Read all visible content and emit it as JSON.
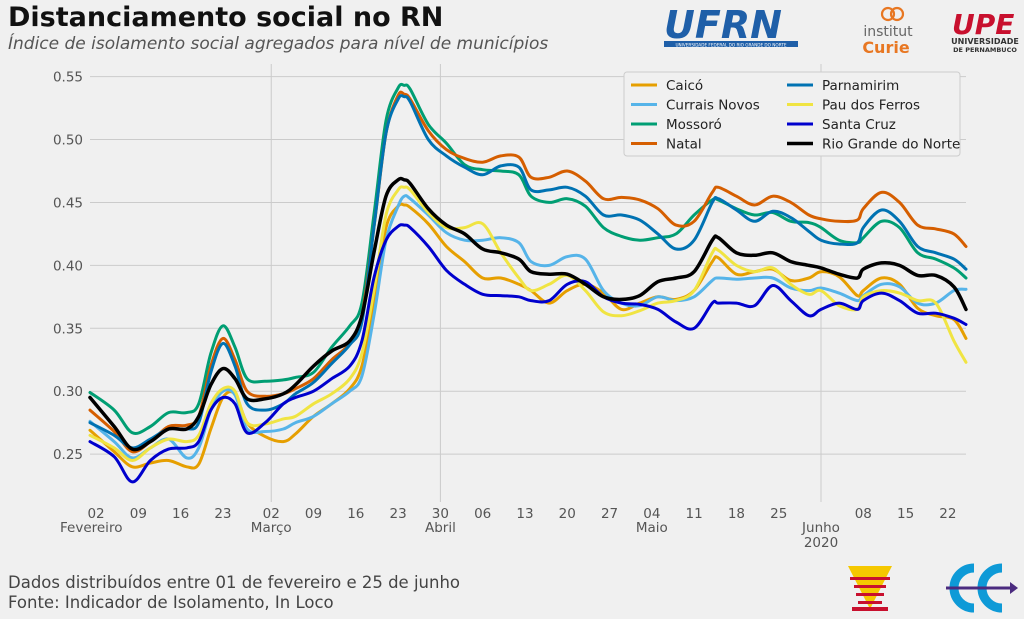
{
  "header": {
    "title": "Distanciamento social no RN",
    "subtitle": "Índice de isolamento social agregados para nível de municípios"
  },
  "footer": {
    "line1": "Dados distribuídos entre 01 de fevereiro e 25 de junho",
    "line2": "Fonte: Indicador de Isolamento, In Loco"
  },
  "logos": {
    "ufrn": "UFRN",
    "ufrn_caption": "UNIVERSIDADE FEDERAL DO RIO GRANDE DO NORTE",
    "curie_top": "institut",
    "curie_bottom": "Curie",
    "upe": "UPE",
    "upe_caption1": "UNIVERSIDADE",
    "upe_caption2": "DE PERNAMBUCO"
  },
  "colors": {
    "background": "#f0f0f0",
    "grid": "#cbcbcb",
    "ufrn_blue": "#1f5fa8",
    "curie_orange": "#e87722",
    "upe_red": "#c8102e"
  },
  "chart_data": {
    "type": "line",
    "x_start": "2020-02-01",
    "x_end": "2020-06-25",
    "xlim": [
      0,
      145
    ],
    "ylim": [
      0.212,
      0.56
    ],
    "yticks": [
      0.25,
      0.3,
      0.35,
      0.4,
      0.45,
      0.5,
      0.55
    ],
    "ytick_labels": [
      "0.25",
      "0.30",
      "0.35",
      "0.40",
      "0.45",
      "0.50",
      "0.55"
    ],
    "xticks": [
      {
        "day": 1,
        "label": "02",
        "sub": "Fevereiro"
      },
      {
        "day": 8,
        "label": "09",
        "sub": ""
      },
      {
        "day": 15,
        "label": "16",
        "sub": ""
      },
      {
        "day": 22,
        "label": "23",
        "sub": ""
      },
      {
        "day": 30,
        "label": "02",
        "sub": "Março"
      },
      {
        "day": 37,
        "label": "09",
        "sub": ""
      },
      {
        "day": 44,
        "label": "16",
        "sub": ""
      },
      {
        "day": 51,
        "label": "23",
        "sub": ""
      },
      {
        "day": 58,
        "label": "30",
        "sub": "Abril"
      },
      {
        "day": 65,
        "label": "06",
        "sub": ""
      },
      {
        "day": 72,
        "label": "13",
        "sub": ""
      },
      {
        "day": 79,
        "label": "20",
        "sub": ""
      },
      {
        "day": 86,
        "label": "27",
        "sub": ""
      },
      {
        "day": 93,
        "label": "04",
        "sub": "Maio"
      },
      {
        "day": 100,
        "label": "11",
        "sub": ""
      },
      {
        "day": 107,
        "label": "18",
        "sub": ""
      },
      {
        "day": 114,
        "label": "25",
        "sub": ""
      },
      {
        "day": 121,
        "label": "",
        "sub": "Junho"
      },
      {
        "day": 128,
        "label": "08",
        "sub": ""
      },
      {
        "day": 135,
        "label": "15",
        "sub": ""
      },
      {
        "day": 142,
        "label": "22",
        "sub": ""
      }
    ],
    "year_label": "2020",
    "year_day": 121,
    "vgrid_days": [
      30,
      58,
      121
    ],
    "legend_position": "top-right",
    "series": [
      {
        "name": "Caicó",
        "color": "#e69f00",
        "width": 3,
        "days": [
          0,
          4,
          7,
          10,
          13,
          16,
          18,
          20,
          22,
          24,
          26,
          29,
          32,
          34,
          37,
          40,
          43,
          45,
          47,
          49,
          51,
          52,
          53,
          56,
          59,
          62,
          65,
          68,
          71,
          73,
          76,
          79,
          82,
          85,
          88,
          91,
          94,
          97,
          100,
          103,
          104,
          107,
          110,
          113,
          116,
          119,
          121,
          124,
          127,
          128,
          131,
          134,
          137,
          140,
          143,
          145
        ],
        "values": [
          0.269,
          0.252,
          0.24,
          0.243,
          0.245,
          0.24,
          0.242,
          0.27,
          0.295,
          0.298,
          0.275,
          0.264,
          0.26,
          0.266,
          0.28,
          0.29,
          0.302,
          0.32,
          0.37,
          0.43,
          0.447,
          0.448,
          0.446,
          0.433,
          0.415,
          0.403,
          0.39,
          0.39,
          0.385,
          0.38,
          0.37,
          0.38,
          0.385,
          0.378,
          0.365,
          0.37,
          0.375,
          0.373,
          0.38,
          0.403,
          0.406,
          0.393,
          0.395,
          0.397,
          0.388,
          0.39,
          0.395,
          0.391,
          0.376,
          0.38,
          0.39,
          0.385,
          0.366,
          0.36,
          0.357,
          0.342
        ]
      },
      {
        "name": "Currais Novos",
        "color": "#56b4e9",
        "width": 3,
        "days": [
          0,
          4,
          7,
          10,
          13,
          16,
          18,
          20,
          22,
          24,
          26,
          29,
          32,
          34,
          37,
          40,
          43,
          45,
          47,
          49,
          51,
          52,
          53,
          56,
          59,
          62,
          65,
          68,
          71,
          73,
          76,
          79,
          82,
          85,
          88,
          91,
          94,
          97,
          100,
          103,
          104,
          107,
          110,
          113,
          116,
          119,
          121,
          124,
          127,
          128,
          131,
          134,
          137,
          140,
          143,
          145
        ],
        "values": [
          0.276,
          0.26,
          0.247,
          0.255,
          0.262,
          0.247,
          0.255,
          0.285,
          0.3,
          0.297,
          0.27,
          0.268,
          0.27,
          0.275,
          0.28,
          0.29,
          0.3,
          0.312,
          0.36,
          0.42,
          0.447,
          0.455,
          0.453,
          0.44,
          0.426,
          0.42,
          0.42,
          0.422,
          0.418,
          0.403,
          0.4,
          0.407,
          0.405,
          0.38,
          0.37,
          0.368,
          0.375,
          0.372,
          0.375,
          0.388,
          0.39,
          0.389,
          0.39,
          0.39,
          0.382,
          0.38,
          0.382,
          0.378,
          0.372,
          0.376,
          0.385,
          0.383,
          0.37,
          0.37,
          0.38,
          0.381
        ]
      },
      {
        "name": "Mossoró",
        "color": "#009e73",
        "width": 3,
        "days": [
          0,
          4,
          7,
          10,
          13,
          16,
          18,
          20,
          22,
          24,
          26,
          29,
          32,
          34,
          37,
          40,
          43,
          45,
          47,
          49,
          51,
          52,
          53,
          56,
          59,
          62,
          65,
          68,
          71,
          73,
          76,
          79,
          82,
          85,
          88,
          91,
          94,
          97,
          100,
          103,
          104,
          107,
          110,
          113,
          116,
          119,
          121,
          124,
          127,
          128,
          131,
          134,
          137,
          140,
          143,
          145
        ],
        "values": [
          0.299,
          0.285,
          0.267,
          0.272,
          0.283,
          0.283,
          0.29,
          0.33,
          0.352,
          0.335,
          0.31,
          0.308,
          0.309,
          0.311,
          0.315,
          0.335,
          0.352,
          0.37,
          0.44,
          0.515,
          0.541,
          0.543,
          0.54,
          0.512,
          0.497,
          0.48,
          0.476,
          0.475,
          0.472,
          0.455,
          0.45,
          0.453,
          0.447,
          0.43,
          0.423,
          0.42,
          0.422,
          0.425,
          0.44,
          0.452,
          0.452,
          0.445,
          0.44,
          0.442,
          0.435,
          0.434,
          0.43,
          0.42,
          0.418,
          0.422,
          0.435,
          0.43,
          0.41,
          0.405,
          0.398,
          0.39
        ]
      },
      {
        "name": "Natal",
        "color": "#d55e00",
        "width": 3,
        "days": [
          0,
          4,
          7,
          10,
          13,
          16,
          18,
          20,
          22,
          24,
          26,
          29,
          32,
          34,
          37,
          40,
          43,
          45,
          47,
          49,
          51,
          52,
          53,
          56,
          59,
          62,
          65,
          68,
          71,
          73,
          76,
          79,
          82,
          85,
          88,
          91,
          94,
          97,
          100,
          103,
          104,
          107,
          110,
          113,
          116,
          119,
          121,
          124,
          127,
          128,
          131,
          134,
          137,
          140,
          143,
          145
        ],
        "values": [
          0.285,
          0.268,
          0.252,
          0.26,
          0.272,
          0.273,
          0.28,
          0.32,
          0.342,
          0.325,
          0.3,
          0.296,
          0.298,
          0.302,
          0.31,
          0.325,
          0.338,
          0.36,
          0.43,
          0.505,
          0.535,
          0.536,
          0.532,
          0.507,
          0.492,
          0.485,
          0.482,
          0.487,
          0.486,
          0.47,
          0.47,
          0.475,
          0.467,
          0.453,
          0.454,
          0.452,
          0.445,
          0.432,
          0.435,
          0.458,
          0.462,
          0.455,
          0.448,
          0.455,
          0.45,
          0.44,
          0.437,
          0.435,
          0.436,
          0.445,
          0.458,
          0.45,
          0.432,
          0.429,
          0.425,
          0.415
        ]
      },
      {
        "name": "Parnamirim",
        "color": "#0072b2",
        "width": 3,
        "days": [
          0,
          4,
          7,
          10,
          13,
          16,
          18,
          20,
          22,
          24,
          26,
          29,
          32,
          34,
          37,
          40,
          43,
          45,
          47,
          49,
          51,
          52,
          53,
          56,
          59,
          62,
          65,
          68,
          71,
          73,
          76,
          79,
          82,
          85,
          88,
          91,
          94,
          97,
          100,
          103,
          104,
          107,
          110,
          113,
          116,
          119,
          121,
          124,
          127,
          128,
          131,
          134,
          137,
          140,
          143,
          145
        ],
        "values": [
          0.275,
          0.265,
          0.255,
          0.262,
          0.27,
          0.27,
          0.275,
          0.315,
          0.338,
          0.32,
          0.29,
          0.285,
          0.29,
          0.298,
          0.307,
          0.322,
          0.337,
          0.355,
          0.43,
          0.505,
          0.532,
          0.534,
          0.53,
          0.5,
          0.487,
          0.478,
          0.472,
          0.479,
          0.478,
          0.46,
          0.46,
          0.462,
          0.455,
          0.44,
          0.44,
          0.436,
          0.425,
          0.413,
          0.42,
          0.45,
          0.453,
          0.444,
          0.435,
          0.443,
          0.438,
          0.427,
          0.42,
          0.417,
          0.418,
          0.43,
          0.444,
          0.435,
          0.415,
          0.41,
          0.405,
          0.397
        ]
      },
      {
        "name": "Pau dos Ferros",
        "color": "#f0e442",
        "width": 3,
        "days": [
          0,
          4,
          7,
          10,
          13,
          16,
          18,
          20,
          22,
          24,
          26,
          29,
          32,
          34,
          37,
          40,
          43,
          45,
          47,
          49,
          51,
          52,
          53,
          56,
          59,
          62,
          65,
          68,
          71,
          73,
          76,
          79,
          82,
          85,
          88,
          91,
          94,
          97,
          100,
          103,
          104,
          107,
          110,
          113,
          116,
          119,
          121,
          124,
          127,
          128,
          131,
          134,
          137,
          140,
          143,
          145
        ],
        "values": [
          0.265,
          0.255,
          0.245,
          0.255,
          0.262,
          0.26,
          0.265,
          0.29,
          0.302,
          0.3,
          0.275,
          0.274,
          0.278,
          0.28,
          0.29,
          0.298,
          0.31,
          0.33,
          0.38,
          0.44,
          0.46,
          0.462,
          0.46,
          0.442,
          0.43,
          0.43,
          0.433,
          0.41,
          0.39,
          0.38,
          0.385,
          0.392,
          0.38,
          0.363,
          0.36,
          0.364,
          0.37,
          0.372,
          0.38,
          0.41,
          0.412,
          0.4,
          0.395,
          0.398,
          0.385,
          0.377,
          0.38,
          0.368,
          0.365,
          0.375,
          0.38,
          0.378,
          0.372,
          0.37,
          0.34,
          0.323
        ]
      },
      {
        "name": "Santa Cruz",
        "color": "#0000cd",
        "width": 3,
        "days": [
          0,
          4,
          7,
          10,
          13,
          16,
          18,
          20,
          22,
          24,
          26,
          29,
          32,
          34,
          37,
          40,
          43,
          45,
          47,
          49,
          51,
          52,
          53,
          56,
          59,
          62,
          65,
          68,
          71,
          73,
          76,
          79,
          82,
          85,
          88,
          91,
          94,
          97,
          100,
          103,
          104,
          107,
          110,
          113,
          116,
          119,
          121,
          124,
          127,
          128,
          131,
          134,
          137,
          140,
          143,
          145
        ],
        "values": [
          0.26,
          0.248,
          0.228,
          0.245,
          0.254,
          0.255,
          0.26,
          0.285,
          0.295,
          0.29,
          0.267,
          0.275,
          0.29,
          0.295,
          0.3,
          0.31,
          0.32,
          0.34,
          0.39,
          0.42,
          0.431,
          0.432,
          0.43,
          0.415,
          0.396,
          0.385,
          0.377,
          0.376,
          0.375,
          0.372,
          0.372,
          0.385,
          0.387,
          0.375,
          0.37,
          0.369,
          0.365,
          0.355,
          0.35,
          0.37,
          0.37,
          0.37,
          0.368,
          0.384,
          0.372,
          0.36,
          0.365,
          0.37,
          0.365,
          0.372,
          0.378,
          0.372,
          0.362,
          0.362,
          0.358,
          0.353
        ]
      },
      {
        "name": "Rio Grande do Norte",
        "color": "#000000",
        "width": 3.5,
        "days": [
          0,
          4,
          7,
          10,
          13,
          16,
          18,
          20,
          22,
          24,
          26,
          29,
          32,
          34,
          37,
          40,
          43,
          45,
          47,
          49,
          51,
          52,
          53,
          56,
          59,
          62,
          65,
          68,
          71,
          73,
          76,
          79,
          82,
          85,
          88,
          91,
          94,
          97,
          100,
          103,
          104,
          107,
          110,
          113,
          116,
          119,
          121,
          124,
          127,
          128,
          131,
          134,
          137,
          140,
          143,
          145
        ],
        "values": [
          0.295,
          0.272,
          0.254,
          0.26,
          0.27,
          0.27,
          0.28,
          0.305,
          0.318,
          0.31,
          0.294,
          0.294,
          0.298,
          0.305,
          0.32,
          0.332,
          0.34,
          0.36,
          0.41,
          0.455,
          0.468,
          0.468,
          0.465,
          0.445,
          0.432,
          0.425,
          0.413,
          0.41,
          0.405,
          0.395,
          0.393,
          0.393,
          0.385,
          0.375,
          0.373,
          0.376,
          0.387,
          0.39,
          0.395,
          0.42,
          0.422,
          0.41,
          0.408,
          0.41,
          0.403,
          0.4,
          0.398,
          0.393,
          0.39,
          0.397,
          0.402,
          0.4,
          0.392,
          0.392,
          0.383,
          0.365
        ]
      }
    ]
  }
}
